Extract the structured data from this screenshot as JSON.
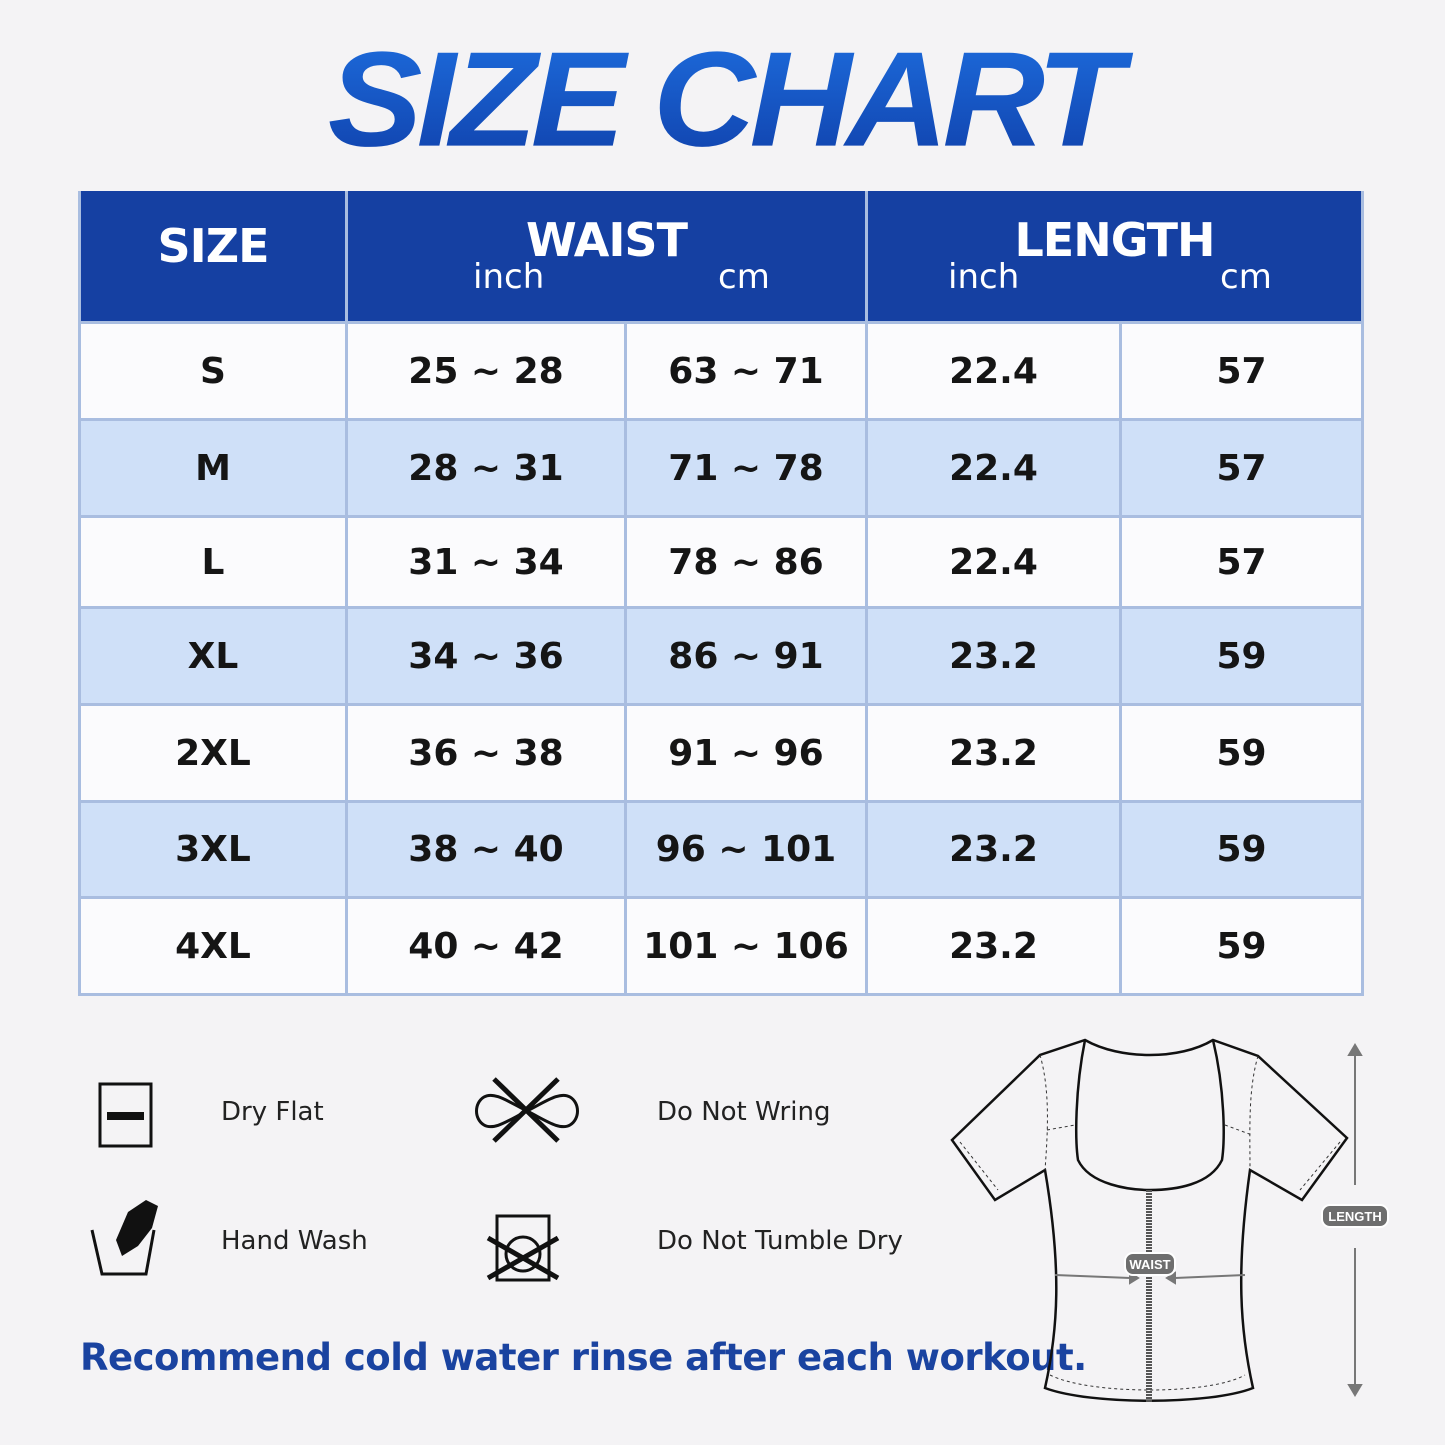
{
  "title": "SIZE CHART",
  "table": {
    "headers": {
      "size": "SIZE",
      "waist": "WAIST",
      "length": "LENGTH",
      "inch": "inch",
      "cm": "cm"
    },
    "rows": [
      {
        "size": "S",
        "waist_inch": "25 ~ 28",
        "waist_cm": "63 ~ 71",
        "length_inch": "22.4",
        "length_cm": "57"
      },
      {
        "size": "M",
        "waist_inch": "28 ~ 31",
        "waist_cm": "71 ~ 78",
        "length_inch": "22.4",
        "length_cm": "57"
      },
      {
        "size": "L",
        "waist_inch": "31 ~ 34",
        "waist_cm": "78 ~ 86",
        "length_inch": "22.4",
        "length_cm": "57"
      },
      {
        "size": "XL",
        "waist_inch": "34 ~ 36",
        "waist_cm": "86 ~ 91",
        "length_inch": "23.2",
        "length_cm": "59"
      },
      {
        "size": "2XL",
        "waist_inch": "36 ~ 38",
        "waist_cm": "91 ~ 96",
        "length_inch": "23.2",
        "length_cm": "59"
      },
      {
        "size": "3XL",
        "waist_inch": "38 ~ 40",
        "waist_cm": "96 ~ 101",
        "length_inch": "23.2",
        "length_cm": "59"
      },
      {
        "size": "4XL",
        "waist_inch": "40 ~ 42",
        "waist_cm": "101 ~ 106",
        "length_inch": "23.2",
        "length_cm": "59"
      }
    ]
  },
  "care": [
    {
      "icon": "dry-flat-icon",
      "label": "Dry Flat"
    },
    {
      "icon": "do-not-wring-icon",
      "label": "Do Not Wring"
    },
    {
      "icon": "hand-wash-icon",
      "label": "Hand Wash"
    },
    {
      "icon": "do-not-tumble-dry-icon",
      "label": "Do Not Tumble Dry"
    }
  ],
  "note": "Recommend cold water rinse after each workout.",
  "diagram": {
    "waist_label": "WAIST",
    "length_label": "LENGTH"
  },
  "colors": {
    "header": "#1540a2",
    "alt_row": "#cfe0f8",
    "border": "#a9bde0",
    "accent_text": "#1a43a0"
  }
}
